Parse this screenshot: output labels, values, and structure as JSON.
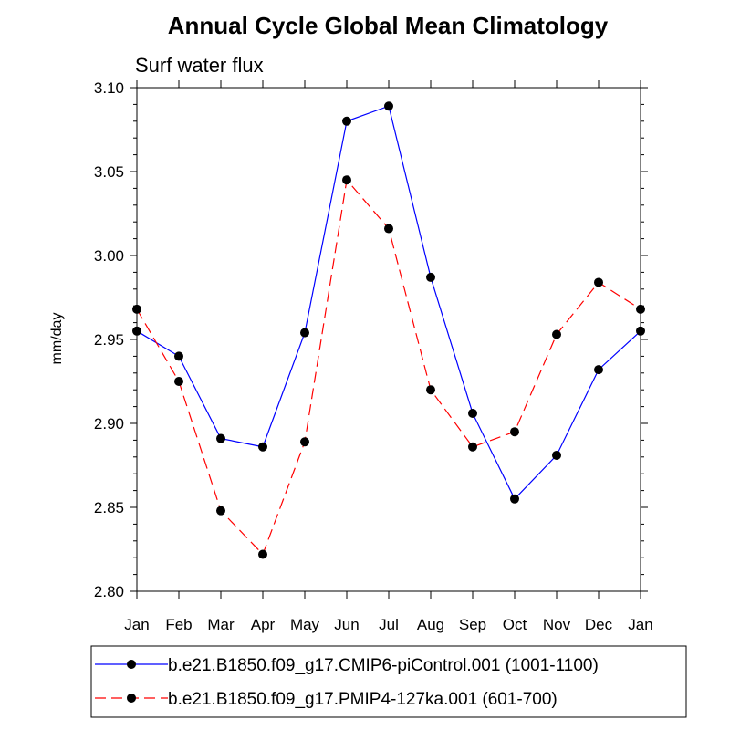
{
  "chart_data": {
    "type": "line",
    "title": "Annual Cycle Global Mean Climatology",
    "subtitle": "Surf water flux",
    "xlabel": "",
    "ylabel": "mm/day",
    "categories": [
      "Jan",
      "Feb",
      "Mar",
      "Apr",
      "May",
      "Jun",
      "Jul",
      "Aug",
      "Sep",
      "Oct",
      "Nov",
      "Dec",
      "Jan"
    ],
    "ylim": [
      2.8,
      3.1
    ],
    "yticks": [
      "2.80",
      "2.85",
      "2.90",
      "2.95",
      "3.00",
      "3.05",
      "3.10"
    ],
    "grid": false,
    "legend_position": "bottom",
    "series": [
      {
        "name": "b.e21.B1850.f09_g17.CMIP6-piControl.001 (1001-1100)",
        "color": "#0000ff",
        "line_style": "solid",
        "marker": "filled-circle",
        "values": [
          2.955,
          2.94,
          2.891,
          2.886,
          2.954,
          3.08,
          3.089,
          2.987,
          2.906,
          2.855,
          2.881,
          2.932,
          2.955
        ]
      },
      {
        "name": "b.e21.B1850.f09_g17.PMIP4-127ka.001 (601-700)",
        "color": "#ff0000",
        "line_style": "dashed",
        "marker": "filled-circle",
        "values": [
          2.968,
          2.925,
          2.848,
          2.822,
          2.889,
          3.045,
          3.016,
          2.92,
          2.886,
          2.895,
          2.953,
          2.984,
          2.968
        ]
      }
    ]
  }
}
